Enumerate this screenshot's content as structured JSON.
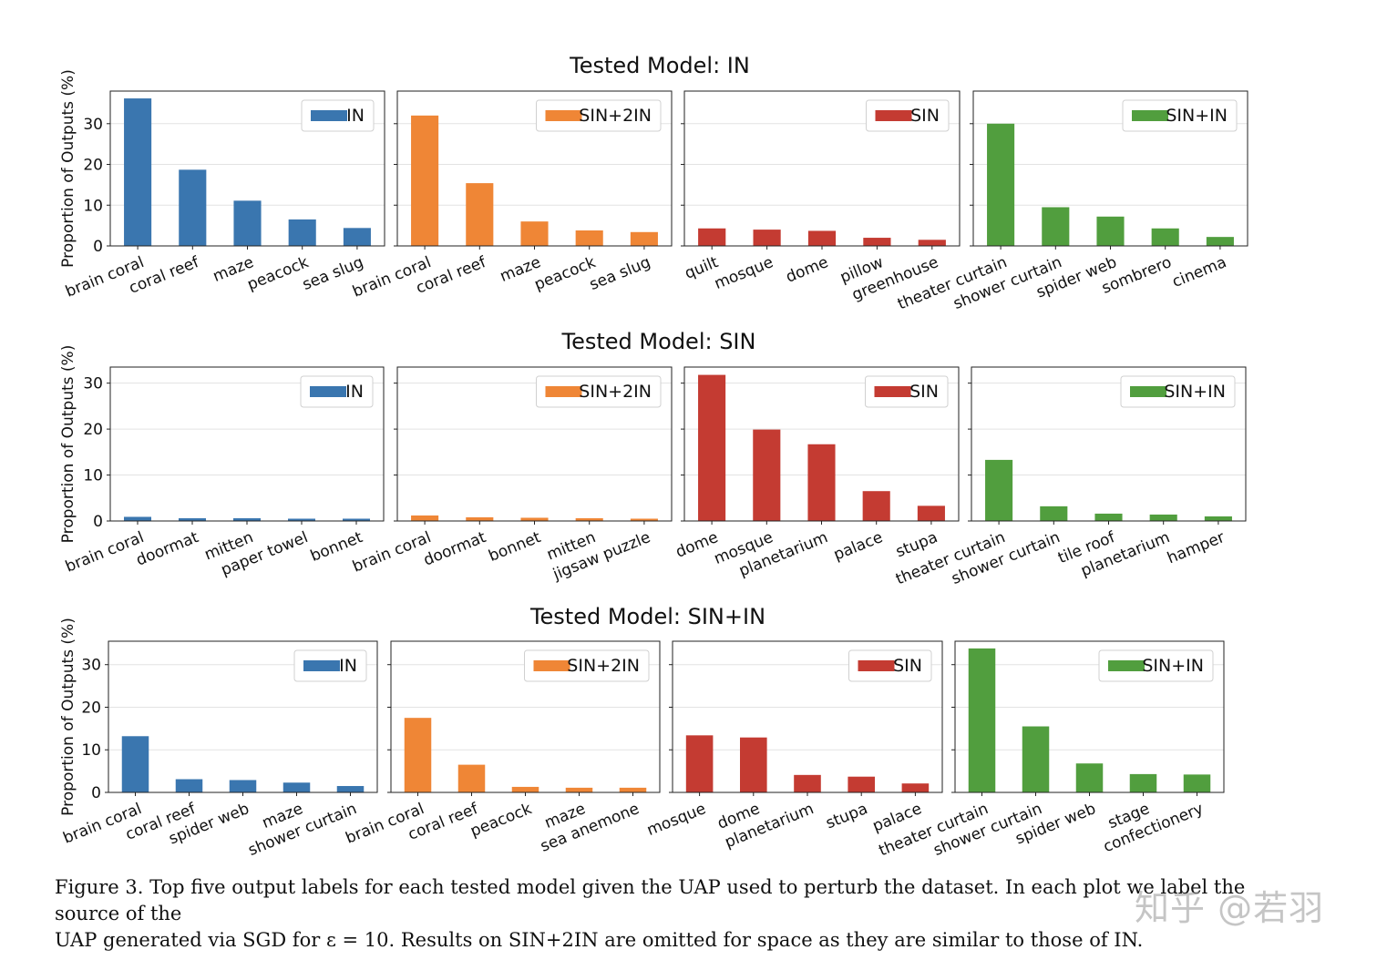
{
  "y_axis_label": "Proportion of Outputs (%)",
  "colors": {
    "IN": "#3a76af",
    "SIN+2IN": "#ef8636",
    "SIN": "#c43b32",
    "SIN+IN": "#519e3e"
  },
  "chart_data": [
    {
      "type": "bar",
      "title": "Tested Model: IN",
      "ylabel": "Proportion of Outputs (%)",
      "ylim": [
        0,
        38
      ],
      "yticks": [
        0,
        10,
        20,
        30
      ],
      "grid": true,
      "panels": [
        {
          "series": "IN",
          "categories": [
            "brain coral",
            "coral reef",
            "maze",
            "peacock",
            "sea slug"
          ],
          "values": [
            36.2,
            18.7,
            11.1,
            6.5,
            4.4
          ]
        },
        {
          "series": "SIN+2IN",
          "categories": [
            "brain coral",
            "coral reef",
            "maze",
            "peacock",
            "sea slug"
          ],
          "values": [
            32.0,
            15.4,
            6.0,
            3.8,
            3.4
          ]
        },
        {
          "series": "SIN",
          "categories": [
            "quilt",
            "mosque",
            "dome",
            "pillow",
            "greenhouse"
          ],
          "values": [
            4.3,
            4.0,
            3.7,
            2.0,
            1.5
          ]
        },
        {
          "series": "SIN+IN",
          "categories": [
            "theater curtain",
            "shower curtain",
            "spider web",
            "sombrero",
            "cinema"
          ],
          "values": [
            30.0,
            9.5,
            7.2,
            4.3,
            2.2
          ]
        }
      ]
    },
    {
      "type": "bar",
      "title": "Tested Model: SIN",
      "ylabel": "Proportion of Outputs (%)",
      "ylim": [
        0,
        33.5
      ],
      "yticks": [
        0,
        10,
        20,
        30
      ],
      "grid": true,
      "panels": [
        {
          "series": "IN",
          "categories": [
            "brain coral",
            "doormat",
            "mitten",
            "paper towel",
            "bonnet"
          ],
          "values": [
            0.9,
            0.6,
            0.6,
            0.5,
            0.5
          ]
        },
        {
          "series": "SIN+2IN",
          "categories": [
            "brain coral",
            "doormat",
            "bonnet",
            "mitten",
            "jigsaw puzzle"
          ],
          "values": [
            1.2,
            0.8,
            0.7,
            0.6,
            0.5
          ]
        },
        {
          "series": "SIN",
          "categories": [
            "dome",
            "mosque",
            "planetarium",
            "palace",
            "stupa"
          ],
          "values": [
            31.8,
            19.9,
            16.7,
            6.5,
            3.3
          ]
        },
        {
          "series": "SIN+IN",
          "categories": [
            "theater curtain",
            "shower curtain",
            "tile roof",
            "planetarium",
            "hamper"
          ],
          "values": [
            13.3,
            3.2,
            1.6,
            1.4,
            1.0
          ]
        }
      ]
    },
    {
      "type": "bar",
      "title": "Tested Model: SIN+IN",
      "ylabel": "Proportion of Outputs (%)",
      "ylim": [
        0,
        35.5
      ],
      "yticks": [
        0,
        10,
        20,
        30
      ],
      "grid": true,
      "panels": [
        {
          "series": "IN",
          "categories": [
            "brain coral",
            "coral reef",
            "spider web",
            "maze",
            "shower curtain"
          ],
          "values": [
            13.2,
            3.1,
            2.9,
            2.3,
            1.5
          ]
        },
        {
          "series": "SIN+2IN",
          "categories": [
            "brain coral",
            "coral reef",
            "peacock",
            "maze",
            "sea anemone"
          ],
          "values": [
            17.5,
            6.5,
            1.3,
            1.1,
            1.1
          ]
        },
        {
          "series": "SIN",
          "categories": [
            "mosque",
            "dome",
            "planetarium",
            "stupa",
            "palace"
          ],
          "values": [
            13.4,
            12.9,
            4.1,
            3.7,
            2.1
          ]
        },
        {
          "series": "SIN+IN",
          "categories": [
            "theater curtain",
            "shower curtain",
            "spider web",
            "stage",
            "confectionery"
          ],
          "values": [
            33.8,
            15.5,
            6.8,
            4.3,
            4.2
          ]
        }
      ]
    }
  ],
  "caption": {
    "line1": "Figure 3. Top five output labels for each tested model given the UAP used to perturb the dataset.  In each plot we label the source of the",
    "line2": "UAP generated via SGD for ε = 10. Results on SIN+2IN are omitted for space as they are similar to those of IN."
  },
  "watermark": "知乎 @若羽"
}
